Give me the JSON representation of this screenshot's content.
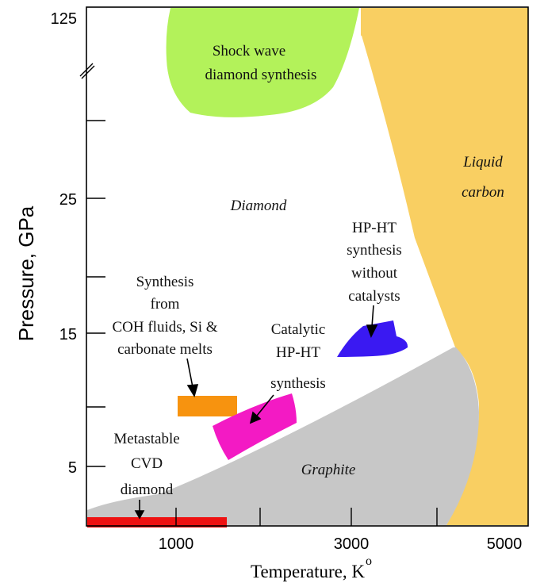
{
  "axes": {
    "x_label": "Temperature, K",
    "x_label_degree": "o",
    "y_label": "Pressure, GPa",
    "x_ticks": [
      "1000",
      "3000",
      "5000"
    ],
    "y_ticks": [
      "125",
      "25",
      "15",
      "5"
    ]
  },
  "regions": {
    "shock_wave": {
      "line1": "Shock wave",
      "line2": "diamond synthesis",
      "color": "#b3f25a"
    },
    "liquid_carbon": {
      "line1": "Liquid",
      "line2": "carbon",
      "color": "#f9cf62"
    },
    "diamond": {
      "label": "Diamond"
    },
    "graphite": {
      "label": "Graphite",
      "color": "#c7c7c7"
    },
    "coh_synthesis": {
      "line1": "Synthesis",
      "line2": "from",
      "line3": "COH fluids, Si &",
      "line4": "carbonate melts",
      "color": "#f7930f"
    },
    "catalytic": {
      "line1": "Catalytic",
      "line2": "HP-HT",
      "line3": "synthesis",
      "color": "#f31ac4"
    },
    "hpht_no_catalyst": {
      "line1": "HP-HT",
      "line2": "synthesis",
      "line3": "without",
      "line4": "catalysts",
      "color": "#3a19f2"
    },
    "cvd": {
      "line1": "Metastable",
      "line2": "CVD",
      "line3": "diamond",
      "color": "#ee1111"
    }
  }
}
